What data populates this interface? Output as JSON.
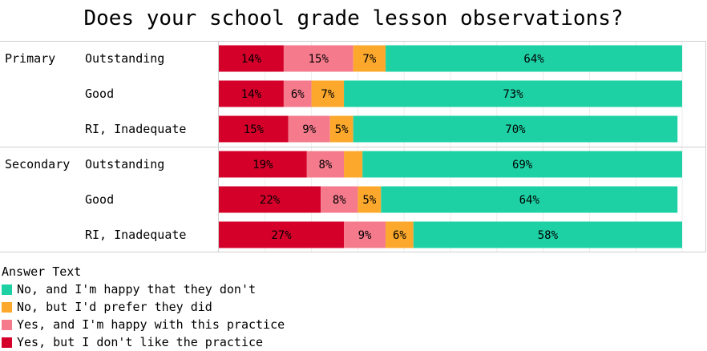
{
  "chart_data": {
    "type": "bar",
    "orientation": "horizontal",
    "stacked": true,
    "title": "Does your school grade lesson observations?",
    "legend_title": "Answer Text",
    "groups": [
      {
        "name": "Primary",
        "categories": [
          "Outstanding",
          "Good",
          "RI, Inadequate"
        ]
      },
      {
        "name": "Secondary",
        "categories": [
          "Outstanding",
          "Good",
          "RI, Inadequate"
        ]
      }
    ],
    "series": [
      {
        "name": "Yes, but I don't like the practice",
        "color": "#d4002a",
        "values": [
          14,
          14,
          15,
          19,
          22,
          27
        ],
        "labels": [
          "14%",
          "14%",
          "15%",
          "19%",
          "22%",
          "27%"
        ]
      },
      {
        "name": "Yes, and I'm happy with this practice",
        "color": "#f47a8c",
        "values": [
          15,
          6,
          9,
          8,
          8,
          9
        ],
        "labels": [
          "15%",
          "6%",
          "9%",
          "8%",
          "8%",
          "9%"
        ]
      },
      {
        "name": "No, but I'd prefer they did",
        "color": "#fba82d",
        "values": [
          7,
          7,
          5,
          4,
          5,
          6
        ],
        "labels": [
          "7%",
          "7%",
          "5%",
          "",
          "5%",
          "6%"
        ]
      },
      {
        "name": "No, and I'm happy that they don't",
        "color": "#1ed1a5",
        "values": [
          64,
          73,
          70,
          69,
          64,
          58
        ],
        "labels": [
          "64%",
          "73%",
          "70%",
          "69%",
          "64%",
          "58%"
        ]
      }
    ],
    "legend_order": [
      3,
      2,
      1,
      0
    ],
    "xlim": [
      0,
      100
    ],
    "grid": true,
    "legend_position": "bottom-left"
  }
}
